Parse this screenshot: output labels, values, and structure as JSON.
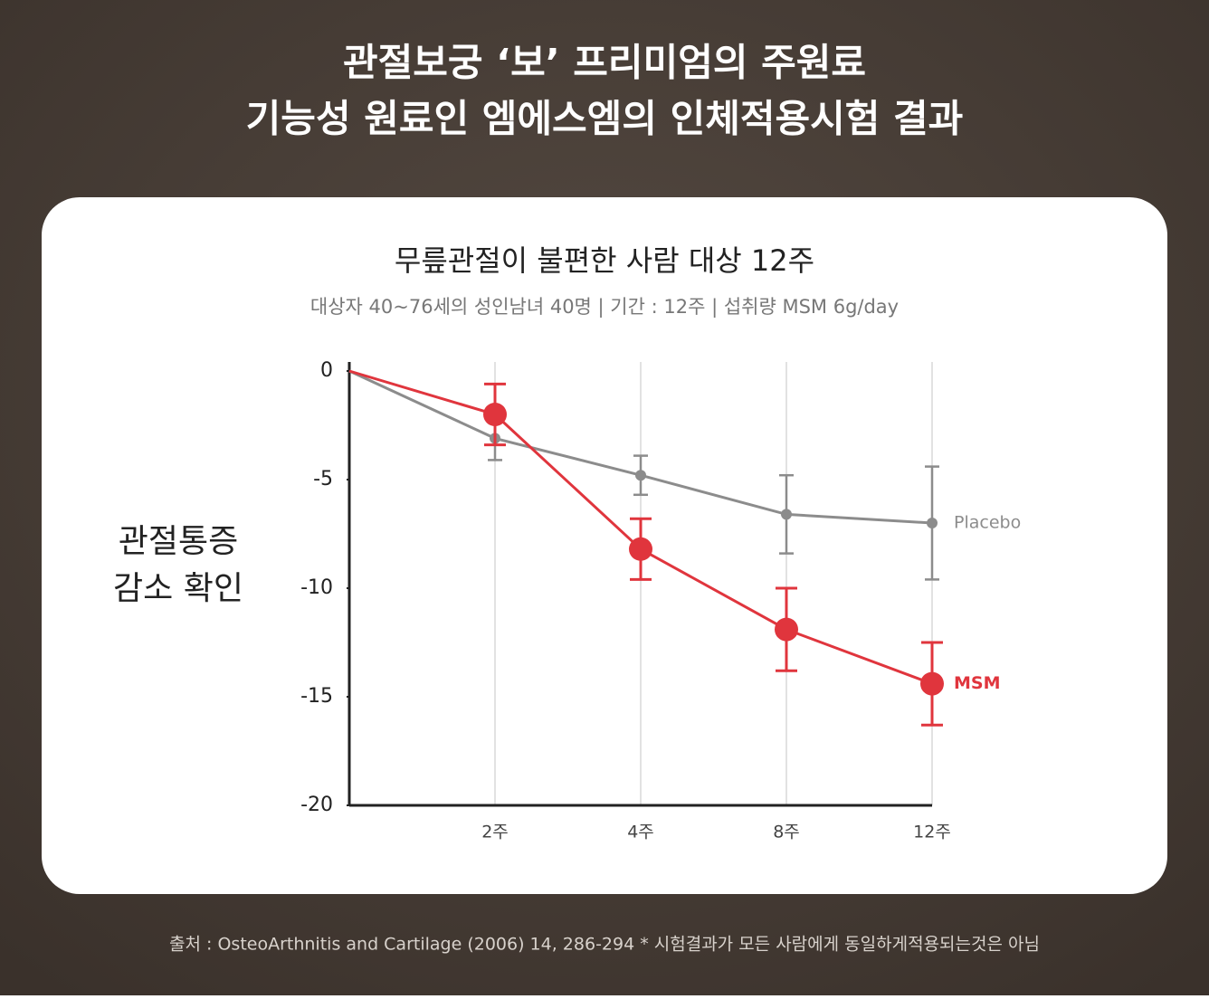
{
  "header": {
    "title_lines": [
      "관절보궁 ‘보’ 프리미엄의 주원료",
      "기능성 원료인 엠에스엠의 인체적용시험 결과"
    ]
  },
  "chart_data": {
    "type": "line",
    "title": "무릎관절이 불편한 사람 대상 12주",
    "subtitle": "대상자 40~76세의 성인남녀 40명 | 기간 : 12주 | 섭취량 MSM 6g/day",
    "y_label_lines": [
      "관절통증",
      "감소 확인"
    ],
    "categories": [
      null,
      "2주",
      "4주",
      "8주",
      "12주"
    ],
    "ylim": [
      -20,
      0
    ],
    "yticks": [
      0,
      -5,
      -10,
      -15,
      -20
    ],
    "grid": true,
    "series": [
      {
        "name": "Placebo",
        "color": "#8c8c8c",
        "values": [
          0,
          -3.1,
          -4.8,
          -6.6,
          -7.0
        ],
        "errors": [
          null,
          1.0,
          0.9,
          1.8,
          2.6
        ]
      },
      {
        "name": "MSM",
        "color": "#e0353d",
        "values": [
          0,
          -2.0,
          -8.2,
          -11.9,
          -14.4
        ],
        "errors": [
          null,
          1.4,
          1.4,
          1.9,
          1.9
        ]
      }
    ]
  },
  "footer": {
    "source": "출처 : OsteoArthnitis and Cartilage (2006) 14, 286-294 * 시험결과가 모든 사람에게 동일하게적용되는것은 아님"
  }
}
